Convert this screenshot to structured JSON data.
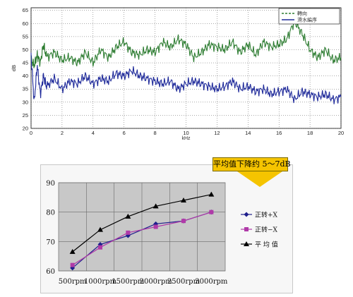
{
  "chart_data": [
    {
      "type": "line",
      "xlabel": "kHz",
      "ylabel": "dB",
      "xlim": [
        0,
        20
      ],
      "ylim": [
        20,
        66
      ],
      "xticks": [
        "0",
        "2",
        "4",
        "6",
        "8",
        "10",
        "12",
        "14",
        "16",
        "18",
        "20"
      ],
      "yticks": [
        "20",
        "25",
        "30",
        "35",
        "40",
        "45",
        "50",
        "55",
        "60",
        "65"
      ],
      "grid": true,
      "legend_position": "top-right",
      "series": [
        {
          "name": "轉向",
          "color": "#2e7d32",
          "x": [
            0,
            0.2,
            0.4,
            0.6,
            0.8,
            1,
            1.5,
            2,
            2.5,
            3,
            3.5,
            4,
            4.5,
            5,
            5.5,
            6,
            6.5,
            7,
            7.5,
            8,
            8.5,
            9,
            9.5,
            10,
            10.5,
            11,
            11.5,
            12,
            12.5,
            13,
            13.5,
            14,
            14.5,
            15,
            15.5,
            16,
            16.5,
            17,
            17.5,
            18,
            18.5,
            19,
            19.5,
            20
          ],
          "y": [
            46,
            44,
            48,
            45,
            52,
            47,
            49,
            46,
            47,
            45,
            49,
            45,
            50,
            47,
            51,
            53,
            49,
            48,
            50,
            49,
            53,
            51,
            54,
            52,
            47,
            49,
            52,
            51,
            50,
            53,
            49,
            52,
            48,
            53,
            51,
            52,
            54,
            61,
            56,
            50,
            47,
            50,
            46,
            47
          ]
        },
        {
          "name": "滑水編序",
          "color": "#1f2a9a",
          "x": [
            0,
            0.2,
            0.4,
            0.6,
            0.8,
            1,
            1.5,
            2,
            2.5,
            3,
            3.5,
            4,
            4.5,
            5,
            5.5,
            6,
            6.5,
            7,
            7.5,
            8,
            8.5,
            9,
            9.5,
            10,
            10.5,
            11,
            11.5,
            12,
            12.5,
            13,
            13.5,
            14,
            14.5,
            15,
            15.5,
            16,
            16.5,
            17,
            17.5,
            18,
            18.5,
            19,
            19.5,
            20
          ],
          "y": [
            48,
            30,
            44,
            33,
            40,
            36,
            39,
            35,
            38,
            37,
            40,
            37,
            39,
            38,
            41,
            40,
            42,
            40,
            39,
            38,
            37,
            38,
            35,
            37,
            38,
            37,
            36,
            35,
            36,
            38,
            35,
            36,
            34,
            35,
            33,
            34,
            35,
            31,
            34,
            33,
            32,
            33,
            31,
            32
          ]
        }
      ]
    },
    {
      "type": "line",
      "categories": [
        "500rpm",
        "1000rpm",
        "1500rpm",
        "2000rpm",
        "2500rpm",
        "3000rpm"
      ],
      "ylim": [
        60,
        90
      ],
      "yticks": [
        "60",
        "70",
        "80",
        "90"
      ],
      "grid": true,
      "legend_position": "right",
      "annotation": "平均值下降约 5～7dB",
      "series": [
        {
          "name": "正转+X",
          "color": "#1f1f8c",
          "marker": "diamond",
          "values": [
            61,
            69,
            72,
            76,
            77,
            80
          ]
        },
        {
          "name": "正转−X",
          "color": "#b03aa8",
          "marker": "square",
          "values": [
            62,
            68,
            73,
            75,
            77,
            80
          ]
        },
        {
          "name": "平 均 值",
          "color": "#000000",
          "marker": "triangle",
          "values": [
            66.5,
            74,
            78.5,
            82,
            84,
            86
          ]
        }
      ]
    }
  ]
}
